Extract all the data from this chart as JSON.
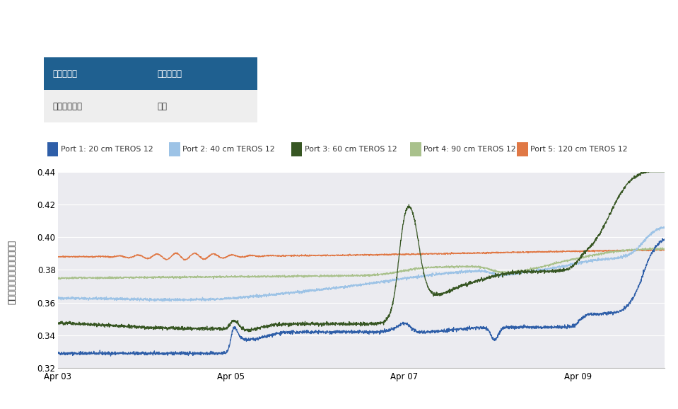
{
  "title_table": {
    "headers": [
      "土壌の種類",
      "作物の種類"
    ],
    "row": [
      "シルト質坸土",
      "裸地"
    ],
    "header_bg": "#1F6090",
    "header_fg": "#ffffff",
    "row_bg": "#eeeeee",
    "row_fg": "#333333"
  },
  "legend": [
    {
      "label": "Port 1: 20 cm TEROS 12",
      "color": "#2E5EA8"
    },
    {
      "label": "Port 2: 40 cm TEROS 12",
      "color": "#9DC3E6"
    },
    {
      "label": "Port 3: 60 cm TEROS 12",
      "color": "#375623"
    },
    {
      "label": "Port 4: 90 cm TEROS 12",
      "color": "#A9C18C"
    },
    {
      "label": "Port 5: 120 cm TEROS 12",
      "color": "#E07845"
    }
  ],
  "ylabel_chars": [
    "土",
    "壌",
    "の",
    "体",
    "積",
    "含",
    "水",
    "率",
    "（",
    "㎥",
    "／",
    "㎥",
    "）"
  ],
  "xlabels": [
    "Apr 03",
    "Apr 05",
    "Apr 07",
    "Apr 09"
  ],
  "ylim": [
    0.32,
    0.44
  ],
  "yticks": [
    0.32,
    0.34,
    0.36,
    0.38,
    0.4,
    0.42,
    0.44
  ],
  "plot_bg": "#ebebf0"
}
